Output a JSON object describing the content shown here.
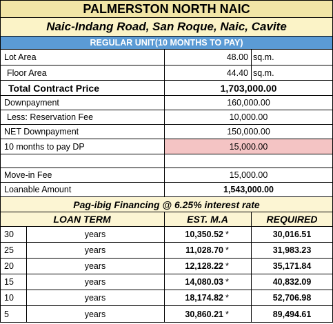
{
  "header": {
    "title": "PALMERSTON NORTH NAIC",
    "address": "Naic-Indang Road, San Roque, Naic, Cavite",
    "unit_type": "REGULAR UNIT(10 MONTHS TO PAY)"
  },
  "colors": {
    "title_bg": "#f1e5a6",
    "address_bg": "#fbf3c7",
    "unit_bg": "#5b9bd5",
    "highlight_bg": "#f4c4c4",
    "financing_bg": "#fcf5d3",
    "term_header_bg": "#fcf5d3"
  },
  "details": {
    "lot_area_label": "Lot Area",
    "lot_area_value": "48.00",
    "lot_area_unit": "sq.m.",
    "floor_area_label": "Floor Area",
    "floor_area_value": "44.40",
    "floor_area_unit": "sq.m.",
    "tcp_label": "Total Contract Price",
    "tcp_value": "1,703,000.00",
    "downpayment_label": "Downpayment",
    "downpayment_value": "160,000.00",
    "reservation_label": "Less: Reservation Fee",
    "reservation_value": "10,000.00",
    "net_dp_label": "NET Downpayment",
    "net_dp_value": "150,000.00",
    "monthly_dp_label": "10 months to pay DP",
    "monthly_dp_value": "15,000.00",
    "move_in_label": "Move-in Fee",
    "move_in_value": "15,000.00",
    "loanable_label": "Loanable Amount",
    "loanable_value": "1,543,000.00"
  },
  "financing": {
    "title": "Pag-ibig Financing @ 6.25% interest rate",
    "col_term": "LOAN TERM",
    "col_ma": "EST. M.A",
    "col_required": "REQUIRED",
    "rows": [
      {
        "years": "30",
        "unit": "years",
        "ma": "10,350.52",
        "mark": "*",
        "required": "30,016.51"
      },
      {
        "years": "25",
        "unit": "years",
        "ma": "11,028.70",
        "mark": "*",
        "required": "31,983.23"
      },
      {
        "years": "20",
        "unit": "years",
        "ma": "12,128.22",
        "mark": "*",
        "required": "35,171.84"
      },
      {
        "years": "15",
        "unit": "years",
        "ma": "14,080.03",
        "mark": "*",
        "required": "40,832.09"
      },
      {
        "years": "10",
        "unit": "years",
        "ma": "18,174.82",
        "mark": "*",
        "required": "52,706.98"
      },
      {
        "years": "5",
        "unit": "years",
        "ma": "30,860.21",
        "mark": "*",
        "required": "89,494.61"
      }
    ]
  }
}
